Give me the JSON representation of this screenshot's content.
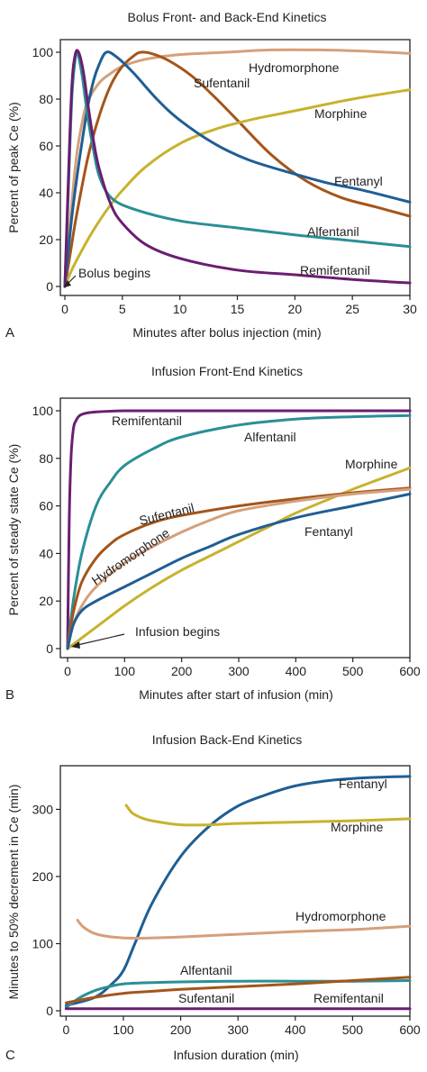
{
  "colors": {
    "fentanyl": "#1f5e94",
    "sufentanil": "#a4551a",
    "hydromorphone": "#d4a07a",
    "morphine": "#c8b22e",
    "alfentanil": "#2a8f96",
    "remifentanil": "#6a1e70"
  },
  "chart_data": [
    {
      "type": "line",
      "title": "Bolus Front- and Back-End Kinetics",
      "panel": "A",
      "xlabel": "Minutes after bolus injection (min)",
      "ylabel": "Percent of peak Ce (%)",
      "xlim": [
        0,
        30
      ],
      "ylim": [
        0,
        100
      ],
      "xticks": [
        0,
        5,
        10,
        15,
        20,
        25,
        30
      ],
      "yticks": [
        0,
        20,
        40,
        60,
        80,
        100
      ],
      "annotation": {
        "text": "Bolus begins",
        "x": 0,
        "y": 0
      },
      "series": [
        {
          "name": "Hydromorphone",
          "color_key": "hydromorphone",
          "points": [
            [
              0,
              0
            ],
            [
              0.5,
              30
            ],
            [
              1,
              55
            ],
            [
              1.5,
              70
            ],
            [
              2,
              79
            ],
            [
              3,
              87
            ],
            [
              4,
              91
            ],
            [
              5,
              94
            ],
            [
              7,
              97
            ],
            [
              10,
              99
            ],
            [
              14,
              100
            ],
            [
              18,
              101
            ],
            [
              22,
              101
            ],
            [
              26,
              100.5
            ],
            [
              30,
              99.5
            ]
          ]
        },
        {
          "name": "Sufentanil",
          "color_key": "sufentanil",
          "points": [
            [
              0,
              0
            ],
            [
              0.5,
              15
            ],
            [
              1,
              30
            ],
            [
              2,
              55
            ],
            [
              3,
              73
            ],
            [
              4,
              86
            ],
            [
              5,
              94
            ],
            [
              6,
              98.5
            ],
            [
              6.6,
              100
            ],
            [
              7.5,
              99.5
            ],
            [
              9,
              96.5
            ],
            [
              11,
              90
            ],
            [
              13,
              81
            ],
            [
              15,
              71
            ],
            [
              18,
              56
            ],
            [
              21,
              45
            ],
            [
              24,
              38
            ],
            [
              27,
              34
            ],
            [
              30,
              30
            ]
          ]
        },
        {
          "name": "Morphine",
          "color_key": "morphine",
          "points": [
            [
              0,
              0
            ],
            [
              0.5,
              6
            ],
            [
              1,
              11
            ],
            [
              2,
              20
            ],
            [
              3,
              28
            ],
            [
              4,
              35
            ],
            [
              5,
              41
            ],
            [
              7,
              51
            ],
            [
              10,
              61
            ],
            [
              13,
              67
            ],
            [
              16,
              71
            ],
            [
              20,
              75
            ],
            [
              25,
              80
            ],
            [
              30,
              84
            ]
          ]
        },
        {
          "name": "Fentanyl",
          "color_key": "fentanyl",
          "points": [
            [
              0,
              0
            ],
            [
              0.5,
              25
            ],
            [
              1,
              45
            ],
            [
              1.5,
              62
            ],
            [
              2,
              77
            ],
            [
              2.5,
              88
            ],
            [
              3,
              95
            ],
            [
              3.6,
              100
            ],
            [
              4.5,
              98
            ],
            [
              6,
              91
            ],
            [
              8,
              80
            ],
            [
              10,
              71
            ],
            [
              13,
              61
            ],
            [
              16,
              54
            ],
            [
              20,
              48
            ],
            [
              23,
              44
            ],
            [
              26,
              41
            ],
            [
              30,
              36
            ]
          ]
        },
        {
          "name": "Alfentanil",
          "color_key": "alfentanil",
          "points": [
            [
              0,
              0
            ],
            [
              0.3,
              40
            ],
            [
              0.6,
              80
            ],
            [
              0.9,
              97
            ],
            [
              1.1,
              100
            ],
            [
              1.5,
              90
            ],
            [
              2,
              72
            ],
            [
              2.5,
              58
            ],
            [
              3,
              47
            ],
            [
              4,
              38
            ],
            [
              6,
              33
            ],
            [
              10,
              28
            ],
            [
              15,
              25
            ],
            [
              20,
              22
            ],
            [
              25,
              19.5
            ],
            [
              30,
              17
            ]
          ]
        },
        {
          "name": "Remifentanil",
          "color_key": "remifentanil",
          "points": [
            [
              0,
              0
            ],
            [
              0.3,
              45
            ],
            [
              0.6,
              85
            ],
            [
              0.9,
              99
            ],
            [
              1.2,
              100
            ],
            [
              1.6,
              92
            ],
            [
              2,
              78
            ],
            [
              2.5,
              62
            ],
            [
              3,
              50
            ],
            [
              4,
              35
            ],
            [
              5,
              27
            ],
            [
              7,
              18
            ],
            [
              10,
              12
            ],
            [
              15,
              7
            ],
            [
              20,
              5
            ],
            [
              25,
              3
            ],
            [
              30,
              1.5
            ]
          ]
        }
      ]
    },
    {
      "type": "line",
      "title": "Infusion Front-End Kinetics",
      "panel": "B",
      "xlabel": "Minutes after start of infusion (min)",
      "ylabel": "Percent of steady state Ce (%)",
      "xlim": [
        0,
        600
      ],
      "ylim": [
        0,
        100
      ],
      "xticks": [
        0,
        100,
        200,
        300,
        400,
        500,
        600
      ],
      "yticks": [
        0,
        20,
        40,
        60,
        80,
        100
      ],
      "annotation": {
        "text": "Infusion begins",
        "x": 0,
        "y": 0
      },
      "series": [
        {
          "name": "Remifentanil",
          "color_key": "remifentanil",
          "points": [
            [
              0,
              0
            ],
            [
              3,
              55
            ],
            [
              6,
              80
            ],
            [
              10,
              92
            ],
            [
              15,
              96
            ],
            [
              25,
              98.5
            ],
            [
              50,
              99.5
            ],
            [
              100,
              100
            ],
            [
              200,
              100
            ],
            [
              400,
              100
            ],
            [
              600,
              100
            ]
          ]
        },
        {
          "name": "Alfentanil",
          "color_key": "alfentanil",
          "points": [
            [
              0,
              0
            ],
            [
              10,
              20
            ],
            [
              25,
              40
            ],
            [
              50,
              60
            ],
            [
              75,
              70
            ],
            [
              100,
              77
            ],
            [
              150,
              84
            ],
            [
              200,
              89
            ],
            [
              300,
              94
            ],
            [
              400,
              96.5
            ],
            [
              500,
              97.5
            ],
            [
              600,
              98
            ]
          ]
        },
        {
          "name": "Morphine",
          "color_key": "morphine",
          "points": [
            [
              0,
              0
            ],
            [
              50,
              9
            ],
            [
              100,
              18
            ],
            [
              150,
              26
            ],
            [
              200,
              33
            ],
            [
              250,
              39
            ],
            [
              300,
              45
            ],
            [
              350,
              51
            ],
            [
              400,
              57
            ],
            [
              450,
              62
            ],
            [
              500,
              67
            ],
            [
              550,
              71.5
            ],
            [
              600,
              76
            ]
          ]
        },
        {
          "name": "Sufentanil",
          "color_key": "sufentanil",
          "points": [
            [
              0,
              0
            ],
            [
              10,
              15
            ],
            [
              25,
              28
            ],
            [
              50,
              38
            ],
            [
              75,
              44
            ],
            [
              100,
              48
            ],
            [
              150,
              53
            ],
            [
              200,
              56
            ],
            [
              300,
              60
            ],
            [
              400,
              63
            ],
            [
              500,
              65.5
            ],
            [
              600,
              67.5
            ]
          ]
        },
        {
          "name": "Hydromorphone",
          "color_key": "hydromorphone",
          "points": [
            [
              0,
              0
            ],
            [
              10,
              10
            ],
            [
              25,
              18
            ],
            [
              50,
              26
            ],
            [
              100,
              36
            ],
            [
              150,
              43
            ],
            [
              200,
              49
            ],
            [
              250,
              54
            ],
            [
              300,
              58
            ],
            [
              400,
              62
            ],
            [
              500,
              65
            ],
            [
              600,
              67
            ]
          ]
        },
        {
          "name": "Fentanyl",
          "color_key": "fentanyl",
          "points": [
            [
              0,
              0
            ],
            [
              10,
              10
            ],
            [
              25,
              16
            ],
            [
              50,
              20
            ],
            [
              100,
              26
            ],
            [
              150,
              32
            ],
            [
              200,
              38
            ],
            [
              250,
              43
            ],
            [
              300,
              48
            ],
            [
              400,
              55
            ],
            [
              500,
              60
            ],
            [
              600,
              65
            ]
          ]
        }
      ]
    },
    {
      "type": "line",
      "title": "Infusion Back-End Kinetics",
      "panel": "C",
      "xlabel": "Infusion duration (min)",
      "ylabel": "Minutes to 50% decrement in Ce (min)",
      "xlim": [
        -10,
        600
      ],
      "ylim": [
        -8,
        365
      ],
      "xticks": [
        0,
        100,
        200,
        300,
        400,
        500,
        600
      ],
      "yticks": [
        0,
        100,
        200,
        300
      ],
      "series": [
        {
          "name": "Fentanyl",
          "color_key": "fentanyl",
          "points": [
            [
              0,
              8
            ],
            [
              50,
              20
            ],
            [
              80,
              40
            ],
            [
              100,
              60
            ],
            [
              120,
              100
            ],
            [
              150,
              160
            ],
            [
              200,
              230
            ],
            [
              250,
              275
            ],
            [
              300,
              305
            ],
            [
              350,
              322
            ],
            [
              400,
              335
            ],
            [
              450,
              342
            ],
            [
              500,
              346
            ],
            [
              550,
              348
            ],
            [
              600,
              349
            ]
          ]
        },
        {
          "name": "Morphine",
          "color_key": "morphine",
          "points": [
            [
              105,
              306
            ],
            [
              115,
              295
            ],
            [
              130,
              288
            ],
            [
              150,
              283
            ],
            [
              200,
              277
            ],
            [
              250,
              277
            ],
            [
              300,
              279
            ],
            [
              400,
              281
            ],
            [
              500,
              283
            ],
            [
              600,
              286
            ]
          ]
        },
        {
          "name": "Hydromorphone",
          "color_key": "hydromorphone",
          "points": [
            [
              20,
              135
            ],
            [
              30,
              125
            ],
            [
              50,
              115
            ],
            [
              80,
              110
            ],
            [
              120,
              108
            ],
            [
              200,
              110
            ],
            [
              300,
              114
            ],
            [
              400,
              118
            ],
            [
              500,
              121
            ],
            [
              600,
              126
            ]
          ]
        },
        {
          "name": "Alfentanil",
          "color_key": "alfentanil",
          "points": [
            [
              0,
              5
            ],
            [
              25,
              20
            ],
            [
              50,
              30
            ],
            [
              75,
              36
            ],
            [
              100,
              40
            ],
            [
              150,
              42
            ],
            [
              200,
              43
            ],
            [
              300,
              44
            ],
            [
              400,
              44
            ],
            [
              500,
              44
            ],
            [
              600,
              45
            ]
          ]
        },
        {
          "name": "Sufentanil",
          "color_key": "sufentanil",
          "points": [
            [
              0,
              12
            ],
            [
              50,
              20
            ],
            [
              100,
              26
            ],
            [
              150,
              29
            ],
            [
              200,
              32
            ],
            [
              300,
              36
            ],
            [
              400,
              40
            ],
            [
              500,
              45
            ],
            [
              600,
              50
            ]
          ]
        },
        {
          "name": "Remifentanil",
          "color_key": "remifentanil",
          "points": [
            [
              0,
              3
            ],
            [
              600,
              3
            ]
          ]
        }
      ]
    }
  ]
}
